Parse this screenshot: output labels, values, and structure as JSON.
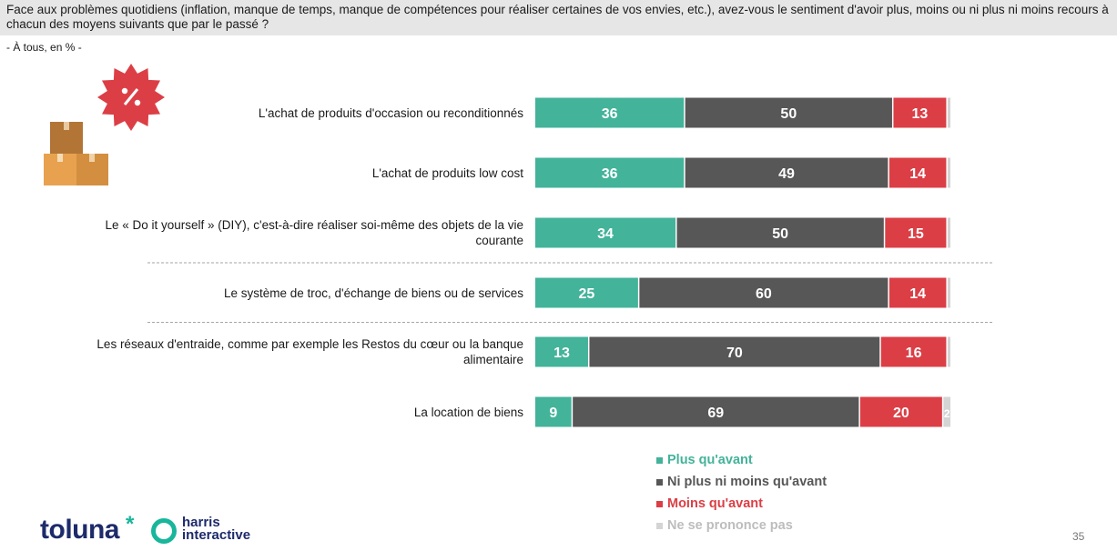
{
  "question": "Face aux problèmes quotidiens (inflation, manque de temps, manque de compétences pour réaliser certaines de vos envies, etc.), avez-vous le sentiment d'avoir plus, moins ou ni plus ni moins recours à chacun des moyens suivants que par le passé ?",
  "base": "- À tous, en % -",
  "brand": {
    "toluna": "toluna",
    "toluna_mark": "*",
    "harris_line1": "harris",
    "harris_line2": "interactive"
  },
  "page_number": "35",
  "colors": {
    "plus": "#43b39a",
    "neutral": "#575757",
    "moins": "#dc3e45",
    "nsp": "#d4d4d4"
  },
  "icons": [
    "percent-badge-icon",
    "boxes-icon"
  ],
  "chart_data": {
    "type": "bar",
    "orientation": "horizontal",
    "stacked": true,
    "xlim": [
      0,
      100
    ],
    "categories": [
      "L'achat de produits d'occasion ou reconditionnés",
      "L'achat de produits low cost",
      "Le « Do it yourself » (DIY), c'est-à-dire réaliser soi-même des objets de la vie courante",
      "Le système de troc, d'échange de biens ou de services",
      "Les réseaux d'entraide, comme par exemple les Restos du cœur ou la banque alimentaire",
      "La location de biens"
    ],
    "series": [
      {
        "name": "Plus qu'avant",
        "color": "#43b39a",
        "values": [
          36,
          36,
          34,
          25,
          13,
          9
        ]
      },
      {
        "name": "Ni plus ni moins qu'avant",
        "color": "#575757",
        "values": [
          50,
          49,
          50,
          60,
          70,
          69
        ]
      },
      {
        "name": "Moins qu'avant",
        "color": "#dc3e45",
        "values": [
          13,
          14,
          15,
          14,
          16,
          20
        ]
      },
      {
        "name": "Ne se prononce pas",
        "color": "#d4d4d4",
        "values": [
          1,
          1,
          1,
          1,
          1,
          2
        ],
        "data_labels_shown": [
          false,
          false,
          false,
          false,
          false,
          true
        ]
      }
    ],
    "legend_position": "bottom-right",
    "separators_after_category": [
      2,
      3
    ]
  }
}
